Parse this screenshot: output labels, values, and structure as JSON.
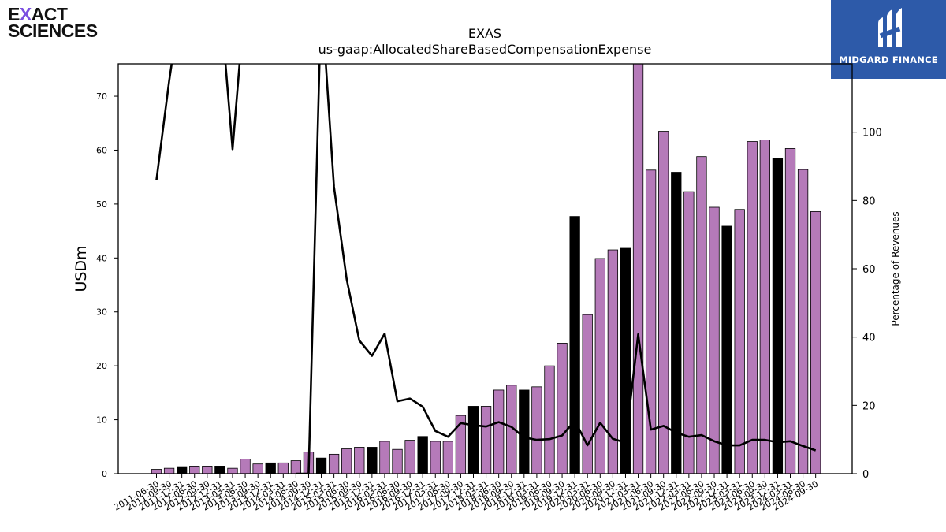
{
  "logos": {
    "left": {
      "line1_pre": "E",
      "line1_x": "X",
      "line1_post": "ACT",
      "line2": "SCIENCES"
    },
    "right": {
      "text": "MIDGARD FINANCE"
    }
  },
  "chart_data": {
    "type": "bar",
    "title": "EXAS",
    "subtitle": "us-gaap:AllocatedShareBasedCompensationExpense",
    "ylabel": "USDm",
    "y2label": "Percentage of Revenues",
    "ylim": [
      0,
      76
    ],
    "y2lim": [
      0,
      120
    ],
    "yticks": [
      0,
      10,
      20,
      30,
      40,
      50,
      60,
      70
    ],
    "y2ticks": [
      0,
      20,
      40,
      60,
      80,
      100
    ],
    "colors": {
      "quarter": "#b57ab9",
      "annual": "#000000",
      "line": "#000000"
    },
    "categories": [
      "2011-06-30",
      "2011-09-30",
      "2011-12-31",
      "2012-06-30",
      "2012-09-30",
      "2012-12-31",
      "2013-03-31",
      "2013-06-30",
      "2013-09-30",
      "2013-12-31",
      "2014-03-31",
      "2014-06-30",
      "2014-09-30",
      "2014-12-31",
      "2015-03-31",
      "2015-06-30",
      "2015-09-30",
      "2015-12-31",
      "2016-03-31",
      "2016-06-30",
      "2016-09-30",
      "2016-12-31",
      "2017-03-31",
      "2017-06-30",
      "2017-09-30",
      "2017-12-31",
      "2018-03-31",
      "2018-06-30",
      "2018-09-30",
      "2018-12-31",
      "2019-03-31",
      "2019-06-30",
      "2019-09-30",
      "2019-12-31",
      "2020-03-31",
      "2020-06-30",
      "2020-09-30",
      "2020-12-31",
      "2021-03-31",
      "2021-06-30",
      "2021-09-30",
      "2021-12-31",
      "2022-03-31",
      "2022-06-30",
      "2022-09-30",
      "2022-12-31",
      "2023-03-31",
      "2023-06-30",
      "2023-09-30",
      "2023-12-31",
      "2024-03-31",
      "2024-06-30",
      "2024-09-30"
    ],
    "series": [
      {
        "values": [
          0.8,
          1.0,
          1.3,
          1.4,
          1.4,
          1.4,
          1.0,
          2.7,
          1.8,
          2.0,
          2.0,
          2.4,
          4.0,
          2.9,
          3.6,
          4.6,
          4.9,
          4.9,
          6.0,
          4.5,
          6.2,
          6.9,
          6.0,
          6.0,
          10.8,
          12.5,
          12.5,
          15.5,
          16.4,
          15.5,
          16.1,
          20.0,
          24.2,
          47.7,
          29.5,
          39.9,
          41.5,
          41.8,
          76.5,
          56.3,
          63.5,
          55.9,
          52.3,
          58.8,
          49.4,
          45.9,
          49.0,
          61.6,
          61.9,
          58.5,
          60.3,
          56.4,
          48.6
        ],
        "annual": [
          false,
          false,
          true,
          false,
          false,
          true,
          false,
          false,
          false,
          true,
          false,
          false,
          false,
          true,
          false,
          false,
          false,
          true,
          false,
          false,
          false,
          true,
          false,
          false,
          false,
          true,
          false,
          false,
          false,
          true,
          false,
          false,
          false,
          true,
          false,
          false,
          false,
          true,
          false,
          false,
          false,
          true,
          false,
          false,
          false,
          true,
          false,
          false,
          false,
          true,
          false,
          false,
          false
        ]
      },
      {
        "type": "line",
        "values": [
          86,
          115,
          140,
          null,
          null,
          140,
          95,
          140,
          null,
          null,
          null,
          0,
          0,
          140,
          84,
          57,
          39,
          34.5,
          41,
          21.2,
          22,
          19.6,
          12.5,
          10.8,
          14.8,
          14.2,
          13.8,
          15.1,
          13.7,
          10.6,
          9.9,
          10.1,
          11.2,
          15.5,
          8.3,
          14.9,
          10.2,
          9.1,
          40.8,
          12.9,
          14,
          12,
          10.8,
          11.3,
          9.5,
          8.3,
          8.3,
          9.9,
          9.9,
          9.2,
          9.5,
          8.1,
          6.8
        ]
      }
    ]
  }
}
